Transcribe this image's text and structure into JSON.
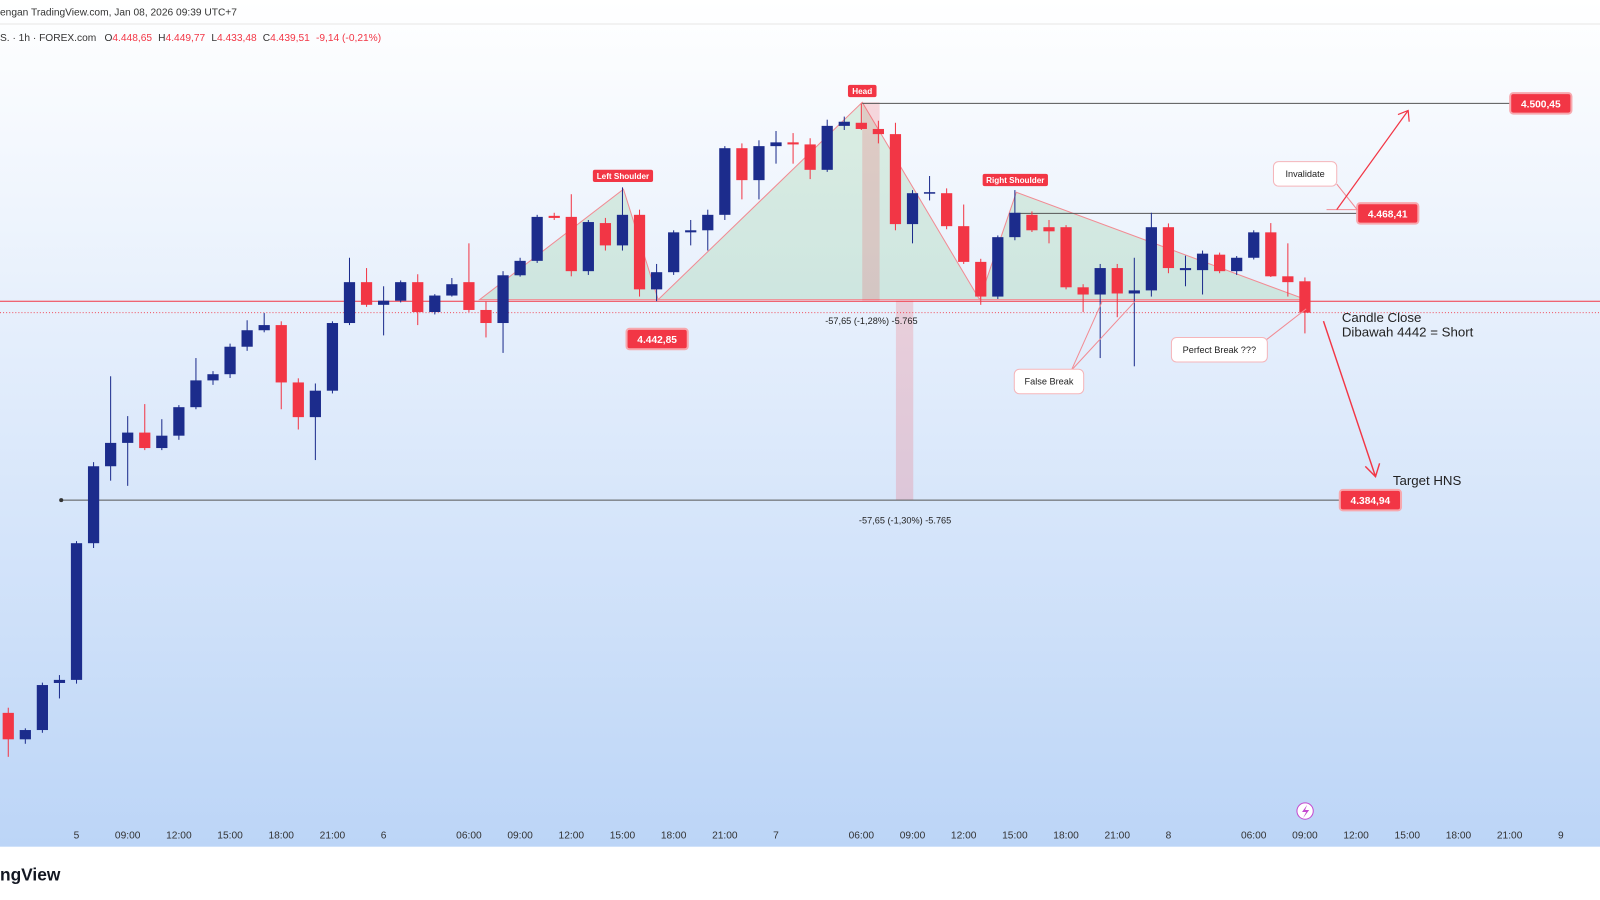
{
  "header": {
    "source": "engan TradingView.com, Jan 08, 2026 09:39 UTC+7",
    "symbol": "S. · 1h · FOREX.com",
    "ohlc": [
      {
        "label": "O",
        "value": "4.448,65"
      },
      {
        "label": "H",
        "value": "4.449,77"
      },
      {
        "label": "L",
        "value": "4.433,48"
      },
      {
        "label": "C",
        "value": "4.439,51"
      }
    ],
    "change": "-9,14 (-0,21%)"
  },
  "chart_data": {
    "type": "candlestick",
    "categories": [
      null,
      null,
      null,
      null,
      "5",
      null,
      null,
      "09:00",
      null,
      null,
      "12:00",
      null,
      null,
      "15:00",
      null,
      null,
      "18:00",
      null,
      null,
      "21:00",
      null,
      null,
      "6",
      null,
      null,
      null,
      null,
      "06:00",
      null,
      null,
      "09:00",
      null,
      null,
      "12:00",
      null,
      null,
      "15:00",
      null,
      null,
      "18:00",
      null,
      null,
      "21:00",
      null,
      null,
      "7",
      null,
      null,
      null,
      null,
      "06:00",
      null,
      null,
      "09:00",
      null,
      null,
      "12:00",
      null,
      null,
      "15:00",
      null,
      null,
      "18:00",
      null,
      null,
      "21:00",
      null,
      null,
      "8",
      null,
      null,
      null,
      null,
      "06:00",
      null,
      null,
      "09:00",
      null,
      null,
      "12:00",
      null,
      null,
      "15:00",
      null,
      null,
      "18:00",
      null,
      null,
      "21:00",
      null,
      null,
      "9"
    ],
    "open": [
      4323.0,
      4315.3,
      4318.0,
      4331.7,
      4332.6,
      4372.4,
      4394.8,
      4401.6,
      4404.6,
      4400.1,
      4403.7,
      4412.0,
      4419.8,
      4421.6,
      4429.6,
      4434.4,
      4435.9,
      4419.2,
      4409.1,
      4416.8,
      4436.5,
      4448.4,
      4441.8,
      4443.0,
      4448.4,
      4439.7,
      4444.5,
      4448.4,
      4440.3,
      4436.5,
      4450.4,
      4454.6,
      4467.7,
      4467.4,
      4451.6,
      4465.6,
      4459.1,
      4468.0,
      4446.3,
      4451.3,
      4462.9,
      4463.5,
      4468.0,
      4487.4,
      4478.1,
      4488.0,
      4489.1,
      4488.5,
      4481.1,
      4493.9,
      4494.8,
      4493.0,
      4491.5,
      4465.3,
      4474.3,
      4474.3,
      4464.7,
      4454.3,
      4444.2,
      4461.5,
      4468.0,
      4464.4,
      4464.4,
      4446.9,
      4444.8,
      4452.5,
      4445.1,
      4446.0,
      4464.4,
      4451.9,
      4451.9,
      4456.4,
      4451.6,
      4455.5,
      4462.9,
      4450.1,
      4448.65,
      null,
      null,
      null,
      null,
      null,
      null,
      null,
      null,
      null,
      null,
      null,
      null,
      null,
      null,
      null
    ],
    "high": [
      4324.5,
      4318.5,
      4331.8,
      4334.0,
      4373.0,
      4396.0,
      4421.0,
      4409.4,
      4412.9,
      4408.5,
      4412.6,
      4426.3,
      4422.5,
      4430.5,
      4437.3,
      4439.4,
      4437.0,
      4420.4,
      4418.9,
      4437.0,
      4455.5,
      4452.5,
      4447.2,
      4448.9,
      4450.7,
      4444.9,
      4449.6,
      4459.7,
      4442.7,
      4451.6,
      4455.5,
      4468.0,
      4468.6,
      4474.0,
      4466.5,
      4467.1,
      4476.0,
      4469.5,
      4453.7,
      4463.5,
      4466.5,
      4469.5,
      4488.0,
      4488.8,
      4489.7,
      4492.4,
      4491.8,
      4490.3,
      4495.7,
      4496.6,
      4500.45,
      4495.4,
      4494.8,
      4475.2,
      4479.3,
      4475.7,
      4471.0,
      4455.2,
      4462.0,
      4475.2,
      4469.0,
      4466.5,
      4465.0,
      4447.8,
      4453.7,
      4453.7,
      4455.5,
      4468.6,
      4465.5,
      4456.1,
      4457.6,
      4457.0,
      4456.0,
      4463.5,
      4465.6,
      4459.7,
      4449.77,
      null,
      null,
      null,
      null,
      null,
      null,
      null,
      null,
      null,
      null,
      null,
      null,
      null,
      null,
      null
    ],
    "low": [
      4310.2,
      4314.0,
      4317.2,
      4327.2,
      4331.5,
      4371.0,
      4390.6,
      4389.1,
      4399.5,
      4399.5,
      4402.5,
      4411.4,
      4418.5,
      4420.5,
      4428.4,
      4433.8,
      4411.4,
      4405.5,
      4396.6,
      4416.0,
      4435.9,
      4441.2,
      4432.9,
      4442.5,
      4435.9,
      4439.0,
      4444.2,
      4439.7,
      4432.3,
      4427.8,
      4450.0,
      4454.0,
      4466.5,
      4450.1,
      4450.5,
      4457.6,
      4457.6,
      4444.2,
      4442.85,
      4450.5,
      4459.1,
      4457.6,
      4466.5,
      4472.5,
      4472.5,
      4482.9,
      4482.9,
      4478.4,
      4480.5,
      4492.7,
      4492.7,
      4488.8,
      4463.5,
      4459.7,
      4472.2,
      4463.8,
      4453.7,
      4441.8,
      4443.5,
      4460.6,
      4463.0,
      4459.7,
      4446.3,
      4439.7,
      4426.3,
      4438.2,
      4423.9,
      4444.2,
      4451.0,
      4447.2,
      4444.8,
      4451.0,
      4450.5,
      4455.0,
      4449.9,
      4444.2,
      4433.48,
      null,
      null,
      null,
      null,
      null,
      null,
      null,
      null,
      null,
      null,
      null,
      null,
      null,
      null,
      null
    ],
    "close": [
      4315.3,
      4318.0,
      4331.1,
      4332.6,
      4372.4,
      4394.8,
      4401.6,
      4404.6,
      4400.1,
      4403.7,
      4412.0,
      4419.8,
      4421.6,
      4429.6,
      4434.4,
      4435.9,
      4419.2,
      4409.1,
      4416.8,
      4436.5,
      4448.4,
      4441.8,
      4443.0,
      4448.4,
      4439.7,
      4444.5,
      4447.8,
      4440.3,
      4436.5,
      4450.4,
      4454.6,
      4467.4,
      4467.1,
      4451.6,
      4465.9,
      4459.1,
      4468.0,
      4446.3,
      4451.3,
      4462.9,
      4463.5,
      4468.0,
      4487.4,
      4478.1,
      4488.0,
      4489.1,
      4488.5,
      4481.1,
      4493.9,
      4495.1,
      4493.0,
      4491.5,
      4465.3,
      4474.3,
      4474.6,
      4464.7,
      4454.3,
      4444.2,
      4461.5,
      4468.6,
      4463.5,
      4463.2,
      4446.9,
      4444.8,
      4452.5,
      4445.1,
      4446.0,
      4464.4,
      4452.5,
      4452.5,
      4456.7,
      4451.6,
      4455.5,
      4462.9,
      4450.1,
      4448.4,
      4439.51,
      null,
      null,
      null,
      null,
      null,
      null,
      null,
      null,
      null,
      null,
      null,
      null,
      null,
      null,
      null
    ],
    "up_color": "#1c2c8c",
    "down_color": "#f23645",
    "ylim": [
      4284.0,
      4523.4
    ],
    "levels": [
      {
        "value": 4500.45,
        "label": "4.500,45"
      },
      {
        "value": 4468.41,
        "label": "4.468,41"
      },
      {
        "value": 4442.85,
        "label": "4.442,85"
      },
      {
        "value": 4384.94,
        "label": "4.384,94"
      }
    ],
    "annotations": {
      "left_shoulder": "Left Shoulder",
      "head": "Head",
      "right_shoulder": "Right Shoulder",
      "invalidate": "Invalidate",
      "false_break": "False Break",
      "perfect_break": "Perfect Break ???",
      "candle_close": "Candle Close",
      "short_rule": "Dibawah 4442 = Short",
      "target": "Target HNS",
      "measure_head": "-57,65 (-1,28%) -5.765",
      "measure_target": "-57,65 (-1,30%) -5.765"
    }
  },
  "footer": {
    "brand": "ngView"
  }
}
